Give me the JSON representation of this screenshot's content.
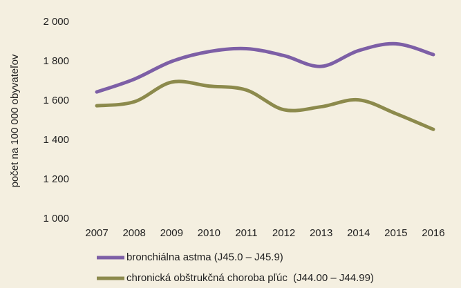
{
  "chart_data": {
    "type": "line",
    "y_label": "počet na 100 000 obyvateľov",
    "categories": [
      "2007",
      "2008",
      "2009",
      "2010",
      "2011",
      "2012",
      "2013",
      "2014",
      "2015",
      "2016"
    ],
    "series": [
      {
        "name": "bronchiálna astma (J45.0 – J45.9)",
        "color": "#7d5fa6",
        "values": [
          1645,
          1710,
          1800,
          1850,
          1865,
          1830,
          1775,
          1855,
          1890,
          1835
        ]
      },
      {
        "name": "chronická obštrukčná choroba pľúc  (J44.00 – J44.99)",
        "color": "#8c8a4c",
        "values": [
          1575,
          1595,
          1695,
          1675,
          1655,
          1555,
          1570,
          1605,
          1535,
          1455
        ]
      }
    ],
    "ylim": [
      1000,
      2000
    ],
    "yticks": [
      {
        "value": 1000,
        "label": "1 000"
      },
      {
        "value": 1200,
        "label": "1 200"
      },
      {
        "value": 1400,
        "label": "1 400"
      },
      {
        "value": 1600,
        "label": "1 600"
      },
      {
        "value": 1800,
        "label": "1 800"
      },
      {
        "value": 2000,
        "label": "2 000"
      }
    ],
    "grid": false,
    "legend": "bottom",
    "smooth": true
  }
}
